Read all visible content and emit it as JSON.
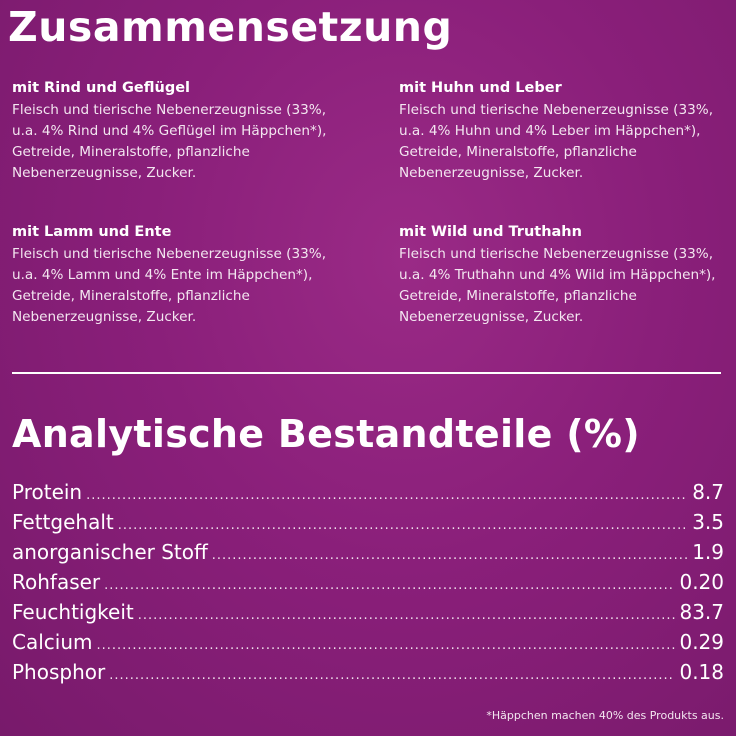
{
  "colors": {
    "background": "#8a1f7a",
    "text": "#ffffff"
  },
  "composition": {
    "title": "Zusammensetzung",
    "variants": [
      {
        "name": "mit Rind und Geflügel",
        "text": "Fleisch und tierische Nebenerzeugnisse (33%, u.a. 4% Rind und 4% Geflügel im Häppchen*), Getreide, Mineralstoffe, pflanzliche Nebenerzeugnisse, Zucker."
      },
      {
        "name": "mit Huhn und Leber",
        "text": "Fleisch und tierische Nebenerzeugnisse (33%, u.a. 4% Huhn und 4% Leber im Häppchen*), Getreide, Mineralstoffe, pflanzliche Nebenerzeugnisse, Zucker."
      },
      {
        "name": "mit Lamm und Ente",
        "text": "Fleisch und tierische Nebenerzeugnisse (33%, u.a. 4% Lamm und 4% Ente im Häppchen*), Getreide, Mineralstoffe, pflanzliche Nebenerzeugnisse, Zucker."
      },
      {
        "name": "mit Wild und Truthahn",
        "text": "Fleisch und tierische Nebenerzeugnisse (33%, u.a. 4% Truthahn und 4% Wild im Häppchen*), Getreide, Mineralstoffe, pflanzliche Nebenerzeugnisse, Zucker."
      }
    ]
  },
  "analysis": {
    "title": "Analytische Bestandteile (%)",
    "rows": [
      {
        "label": "Protein",
        "value": "8.7"
      },
      {
        "label": "Fettgehalt",
        "value": "3.5"
      },
      {
        "label": "anorganischer Stoff",
        "value": "1.9"
      },
      {
        "label": "Rohfaser",
        "value": "0.20"
      },
      {
        "label": "Feuchtigkeit",
        "value": "83.7"
      },
      {
        "label": "Calcium",
        "value": "0.29"
      },
      {
        "label": "Phosphor",
        "value": "0.18"
      }
    ]
  },
  "footnote": "*Häppchen machen 40% des Produkts aus."
}
